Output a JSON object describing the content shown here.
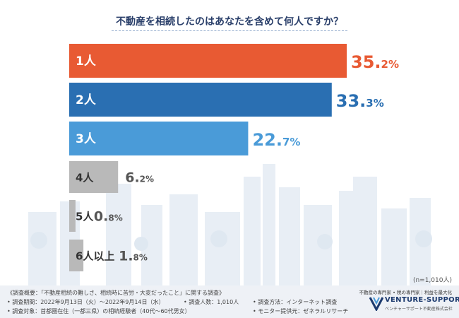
{
  "chart_data": {
    "type": "bar",
    "orientation": "horizontal",
    "title": "不動産を相続したのはあなたを含めて何人ですか？",
    "categories": [
      "1人",
      "2人",
      "3人",
      "4人",
      "5人",
      "6人以上"
    ],
    "values": [
      35.2,
      33.3,
      22.7,
      6.2,
      0.8,
      1.8
    ],
    "value_labels": [
      {
        "num": "35.",
        "dec": "2%"
      },
      {
        "num": "33.",
        "dec": "3%"
      },
      {
        "num": "22.",
        "dec": "7%"
      },
      {
        "num": "6.",
        "dec": "2%"
      },
      {
        "num": "0.",
        "dec": "8%"
      },
      {
        "num": "1.",
        "dec": "8%"
      }
    ],
    "colors": [
      "#e85a33",
      "#2a6fb2",
      "#4a9bd8",
      "#b9b9b9",
      "#b9b9b9",
      "#b9b9b9"
    ],
    "label_colors": [
      "#e85a33",
      "#2a6fb2",
      "#4a9bd8",
      "#555555",
      "#555555",
      "#555555"
    ],
    "xlim": [
      0,
      35.2
    ],
    "sample_note": "(n=1,010人)"
  },
  "footer": {
    "line1": "《調査概要：「不動産相続の難しさ、相続時に苦労・大変だったこと」に関する調査》",
    "line2": "• 調査期間：2022年9月13日（火）～2022年9月14日（水）",
    "line3": "• 調査対象：首都圏在住（一都三県）の相続経験者（40代～60代男女）",
    "line2b": "• 調査人数：1,010人",
    "line2c": "• 調査方法：インターネット調査",
    "line3c": "• モニター提供元：ゼネラルリサーチ"
  },
  "brand": {
    "tagline": "不動産の専門家 • 税の専門家｜利益を最大化",
    "name": "VENTURE-SUPPORT",
    "sub": "ベンチャーサポート不動産株式会社"
  }
}
